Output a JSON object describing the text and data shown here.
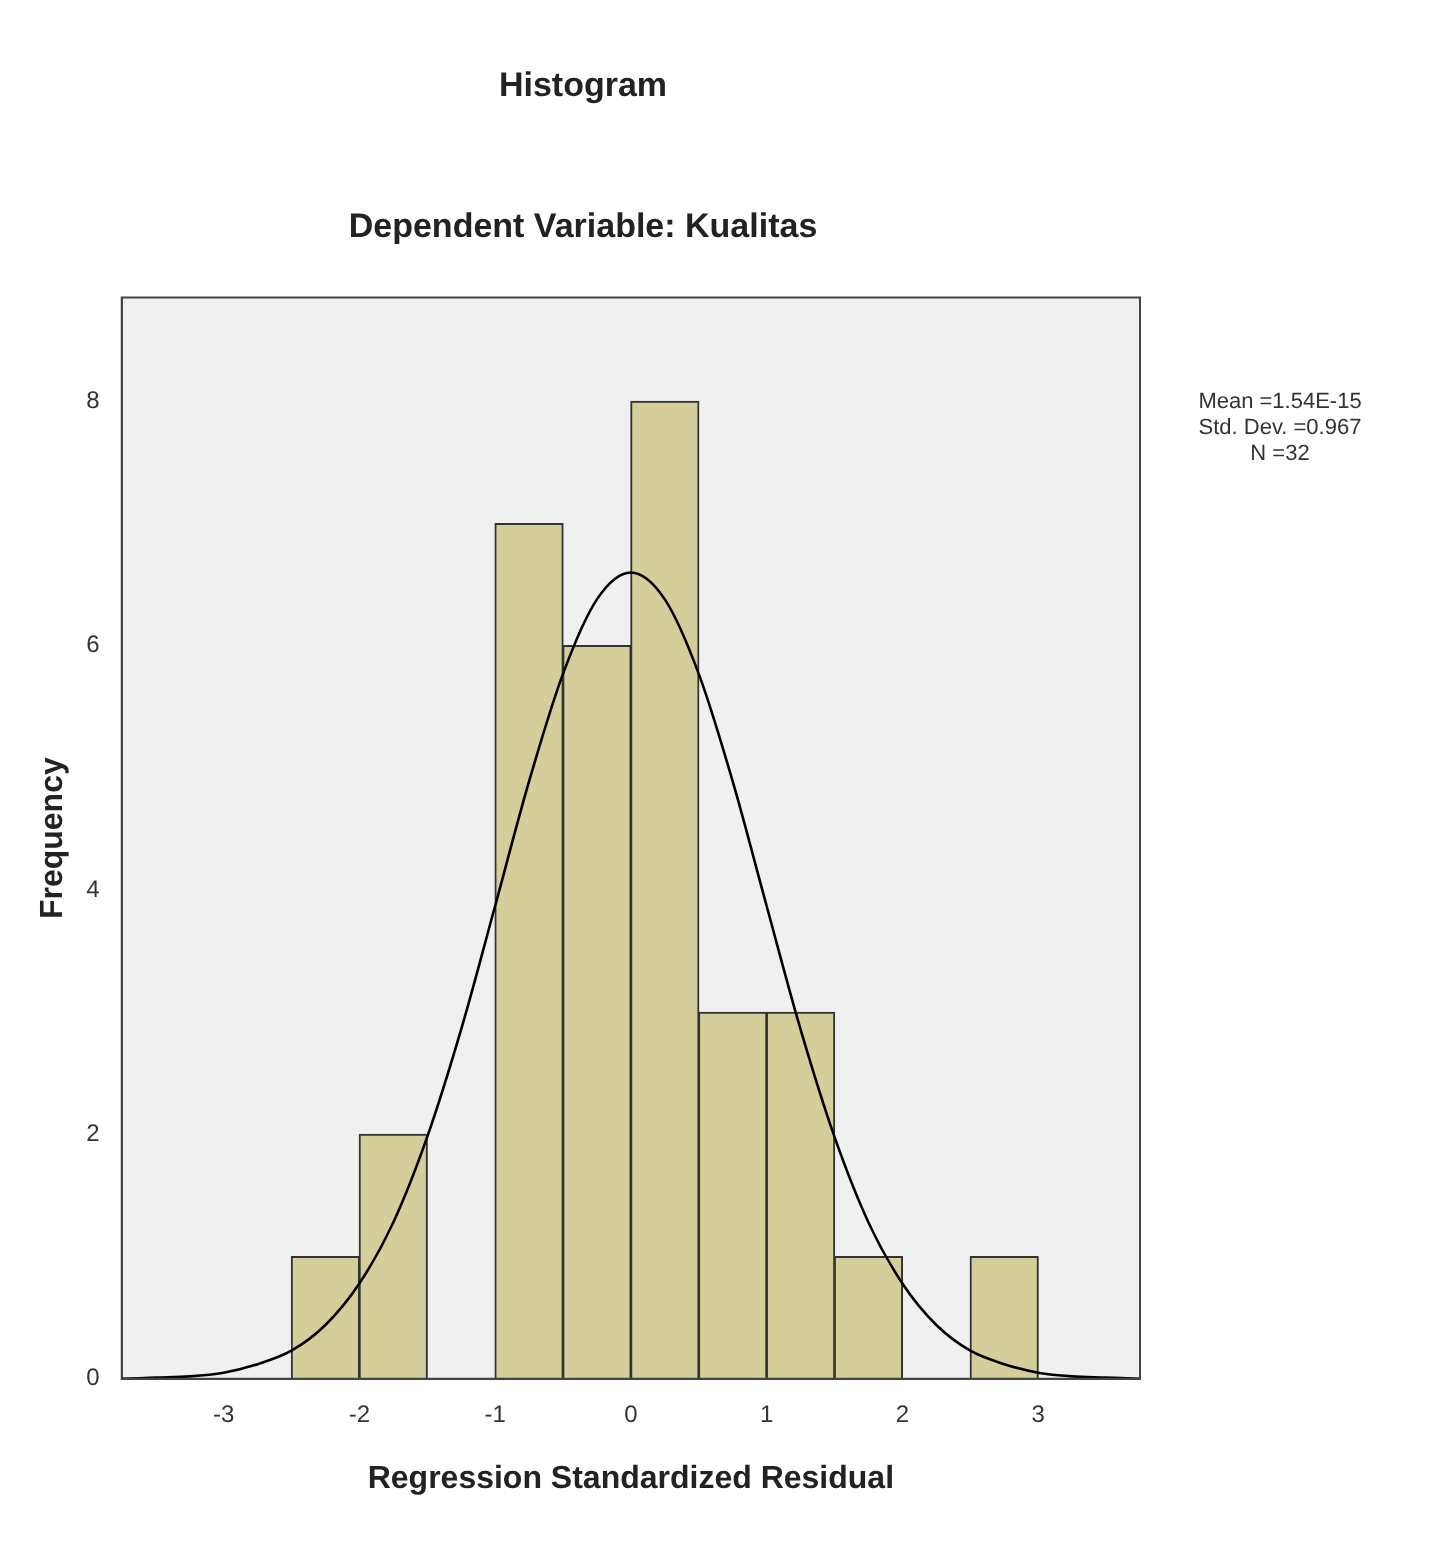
{
  "chart_data": {
    "type": "histogram",
    "title": "Histogram",
    "subtitle": "Dependent Variable: Kualitas",
    "xlabel": "Regression Standardized Residual",
    "ylabel": "Frequency",
    "series": [
      {
        "type": "histogram",
        "color": "#d3ce9a",
        "bins": [
          -2.5,
          -2,
          -1.5,
          -1,
          -0.5,
          0,
          0.5,
          1,
          1.5,
          2,
          2.5,
          3
        ],
        "values": [
          1,
          2,
          0,
          7,
          6,
          8,
          3,
          3,
          1,
          0,
          1
        ]
      },
      {
        "type": "line",
        "color": "#000000",
        "x": [
          -3.75,
          -3.5,
          -3.25,
          -3,
          -2.75,
          -2.5,
          -2.25,
          -2,
          -1.75,
          -1.5,
          -1.25,
          -1,
          -0.75,
          -0.5,
          -0.25,
          0,
          0.25,
          0.5,
          0.75,
          1,
          1.25,
          1.5,
          1.75,
          2,
          2.25,
          2.5,
          2.75,
          3,
          3.25,
          3.5,
          3.75
        ],
        "values": [
          0,
          0.01,
          0.02,
          0.05,
          0.12,
          0.23,
          0.44,
          0.78,
          1.28,
          1.98,
          2.86,
          3.87,
          4.89,
          5.77,
          6.38,
          6.6,
          6.38,
          5.77,
          4.89,
          3.87,
          2.86,
          1.98,
          1.28,
          0.78,
          0.44,
          0.23,
          0.12,
          0.05,
          0.02,
          0.01,
          0
        ]
      }
    ],
    "xlim": [
      -3.75,
      3.75
    ],
    "xticks": [
      -3,
      -2,
      -1,
      0,
      1,
      2,
      3
    ],
    "ylim": [
      0,
      8.85
    ],
    "yticks": [
      0,
      2,
      4,
      6,
      8
    ],
    "grid": false,
    "legend": false,
    "line_style": "solid",
    "marker": "none",
    "annotations": [
      "Mean =1.54E-15\nStd. Dev. =0.967\nN =32"
    ]
  }
}
